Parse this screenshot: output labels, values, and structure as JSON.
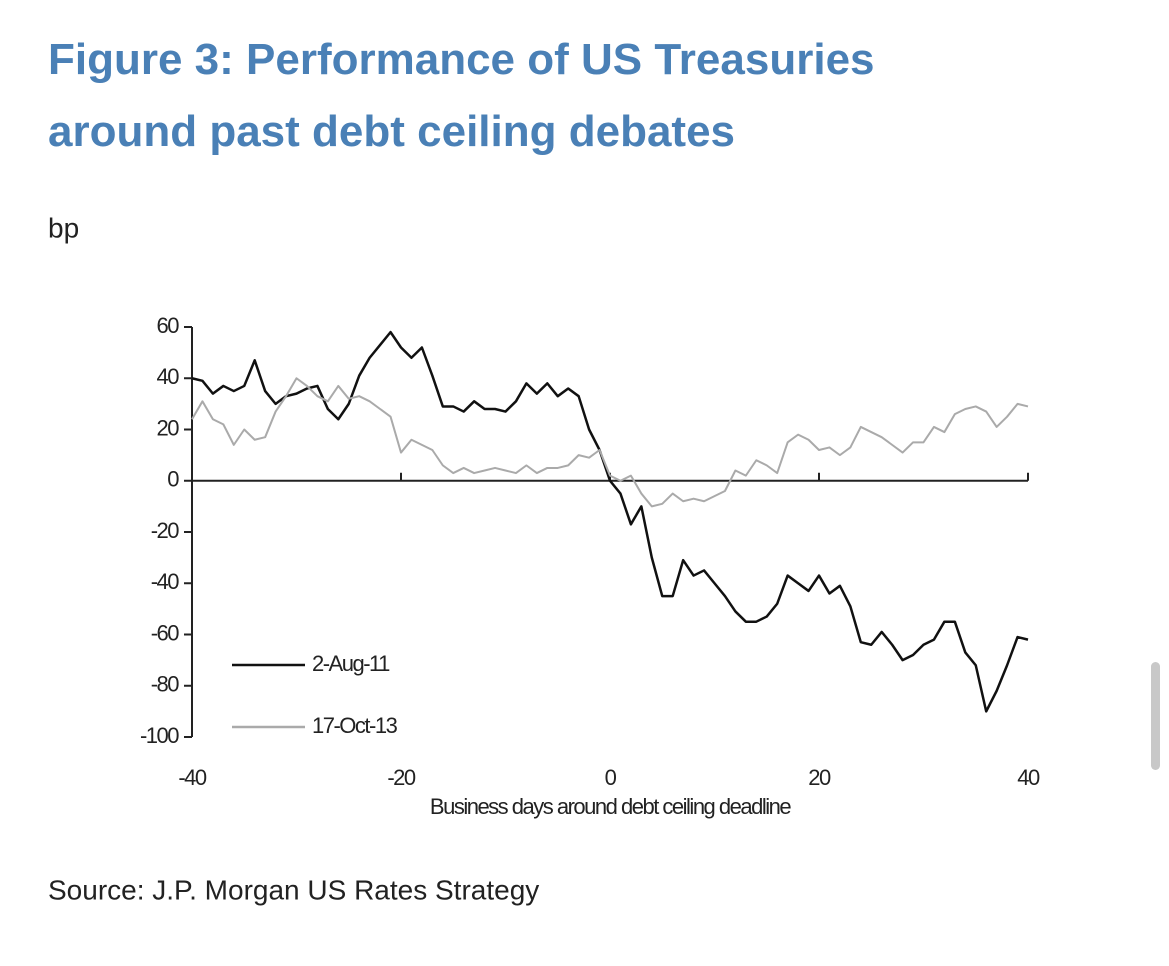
{
  "chart_data": {
    "type": "line",
    "title": "Figure 3: Performance of US Treasuries around past debt ceiling debates",
    "y_label": "bp",
    "x_label": "Business days around debt ceiling deadline",
    "source": "Source: J.P. Morgan US Rates Strategy",
    "x": [
      -40,
      -39,
      -38,
      -37,
      -36,
      -35,
      -34,
      -33,
      -32,
      -31,
      -30,
      -29,
      -28,
      -27,
      -26,
      -25,
      -24,
      -23,
      -22,
      -21,
      -20,
      -19,
      -18,
      -17,
      -16,
      -15,
      -14,
      -13,
      -12,
      -11,
      -10,
      -9,
      -8,
      -7,
      -6,
      -5,
      -4,
      -3,
      -2,
      -1,
      0,
      1,
      2,
      3,
      4,
      5,
      6,
      7,
      8,
      9,
      10,
      11,
      12,
      13,
      14,
      15,
      16,
      17,
      18,
      19,
      20,
      21,
      22,
      23,
      24,
      25,
      26,
      27,
      28,
      29,
      30,
      31,
      32,
      33,
      34,
      35,
      36,
      37,
      38,
      39,
      40
    ],
    "series": [
      {
        "name": "2-Aug-11",
        "color": "#111111",
        "values": [
          40,
          39,
          34,
          37,
          35,
          37,
          47,
          35,
          30,
          33,
          34,
          36,
          37,
          28,
          24,
          30,
          41,
          48,
          53,
          58,
          52,
          48,
          52,
          41,
          29,
          29,
          27,
          31,
          28,
          28,
          27,
          31,
          38,
          34,
          38,
          33,
          36,
          33,
          20,
          12,
          0,
          -5,
          -17,
          -10,
          -30,
          -45,
          -45,
          -31,
          -37,
          -35,
          -40,
          -45,
          -51,
          -55,
          -55,
          -53,
          -48,
          -37,
          -40,
          -43,
          -37,
          -44,
          -41,
          -49,
          -63,
          -64,
          -59,
          -64,
          -70,
          -68,
          -64,
          -62,
          -55,
          -55,
          -67,
          -72,
          -90,
          -82,
          -72,
          -61,
          -62
        ]
      },
      {
        "name": "17-Oct-13",
        "color": "#aaaaaa",
        "values": [
          24,
          31,
          24,
          22,
          14,
          20,
          16,
          17,
          27,
          33,
          40,
          37,
          33,
          31,
          37,
          32,
          33,
          31,
          28,
          25,
          11,
          16,
          14,
          12,
          6,
          3,
          5,
          3,
          4,
          5,
          4,
          3,
          6,
          3,
          5,
          5,
          6,
          10,
          9,
          12,
          2,
          0,
          2,
          -5,
          -10,
          -9,
          -5,
          -8,
          -7,
          -8,
          -6,
          -4,
          4,
          2,
          8,
          6,
          3,
          15,
          18,
          16,
          12,
          13,
          10,
          13,
          21,
          19,
          17,
          14,
          11,
          15,
          15,
          21,
          19,
          26,
          28,
          29,
          27,
          21,
          25,
          30,
          29
        ]
      }
    ],
    "xlim": [
      -40,
      40
    ],
    "xticks": [
      -40,
      -20,
      0,
      20,
      40
    ],
    "ylim": [
      -100,
      60
    ],
    "yticks": [
      60,
      40,
      20,
      0,
      -20,
      -40,
      -60,
      -80,
      -100
    ],
    "legend": "lower left"
  }
}
